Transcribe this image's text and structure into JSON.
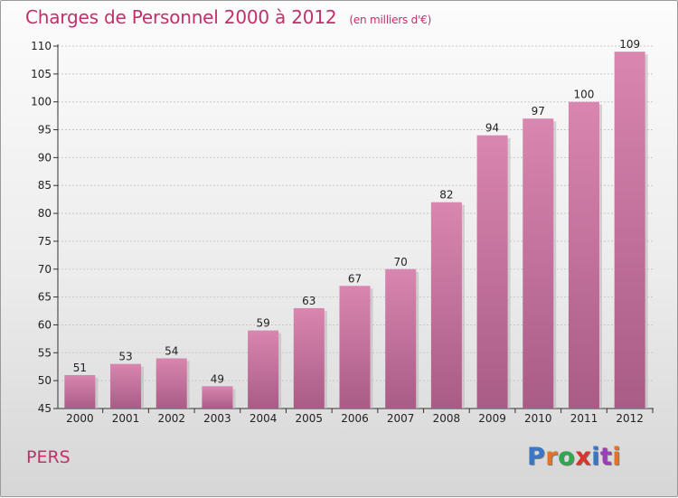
{
  "chart_data": {
    "type": "bar",
    "title": "Charges de Personnel 2000 à 2012",
    "subtitle": "(en milliers d'€)",
    "categories": [
      "2000",
      "2001",
      "2002",
      "2003",
      "2004",
      "2005",
      "2006",
      "2007",
      "2008",
      "2009",
      "2010",
      "2011",
      "2012"
    ],
    "values": [
      51,
      53,
      54,
      49,
      59,
      63,
      67,
      70,
      82,
      94,
      97,
      100,
      109
    ],
    "xlabel": "",
    "ylabel": "",
    "ylim": [
      45,
      110
    ],
    "yticks": [
      45,
      50,
      55,
      60,
      65,
      70,
      75,
      80,
      85,
      90,
      95,
      100,
      105,
      110
    ],
    "grid": true,
    "legend": "none",
    "colors": {
      "bar": "#d986b0",
      "bar_dark": "#a95c86",
      "title": "#c0306a"
    }
  },
  "footer": {
    "commune": "PERS",
    "logo": "Proxiti",
    "logo_colors": [
      "#3a76c8",
      "#e0752a",
      "#2fa84f",
      "#d9342b",
      "#3a76c8",
      "#9b3fb5",
      "#e0752a"
    ]
  }
}
